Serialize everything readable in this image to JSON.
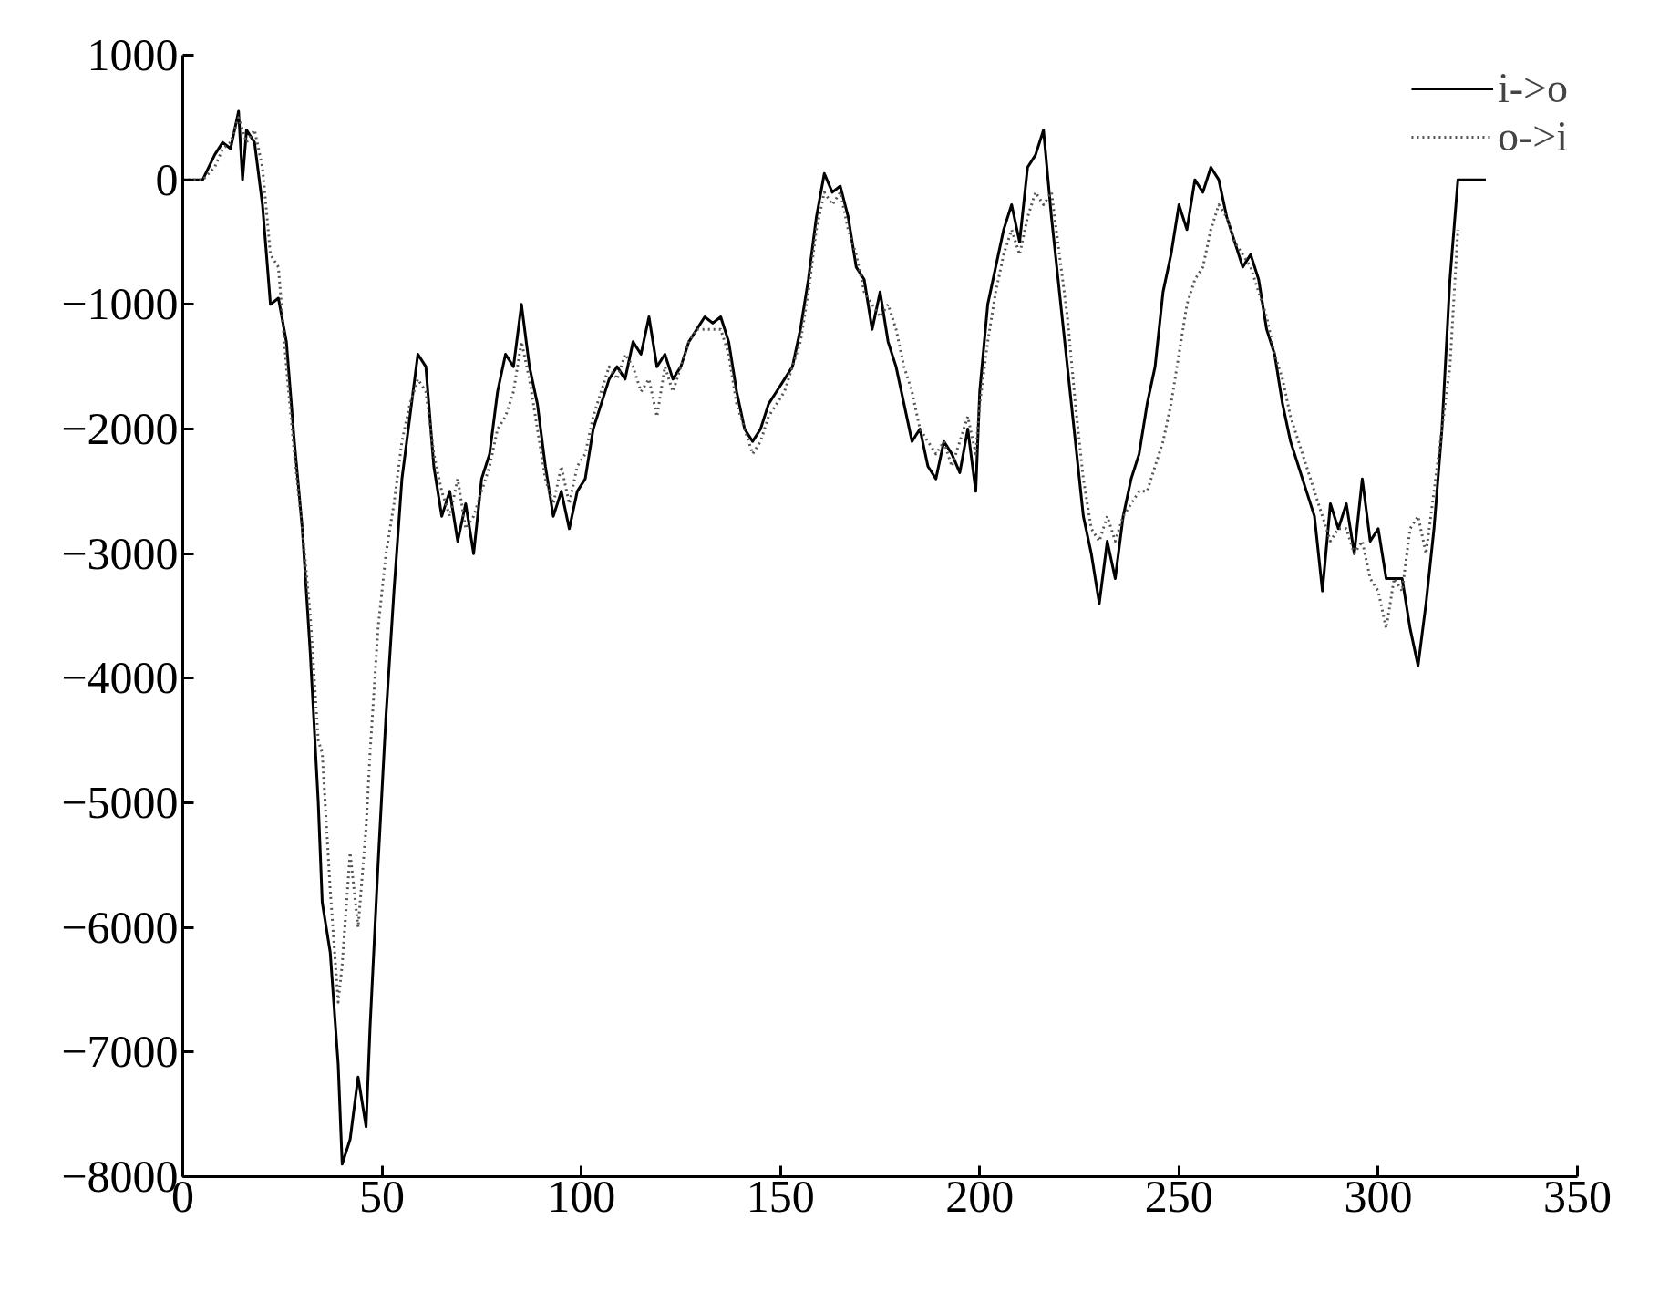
{
  "chart_data": {
    "type": "line",
    "xlim": [
      0,
      350
    ],
    "ylim": [
      -8000,
      1000
    ],
    "xticks": [
      0,
      50,
      100,
      150,
      200,
      250,
      300,
      350
    ],
    "yticks": [
      {
        "value": 1000,
        "label": "1000"
      },
      {
        "value": 0,
        "label": "0"
      },
      {
        "value": -1000,
        "label": "−1000"
      },
      {
        "value": -2000,
        "label": "−2000"
      },
      {
        "value": -3000,
        "label": "−3000"
      },
      {
        "value": -4000,
        "label": "−4000"
      },
      {
        "value": -5000,
        "label": "−5000"
      },
      {
        "value": -6000,
        "label": "−6000"
      },
      {
        "value": -7000,
        "label": "−7000"
      },
      {
        "value": -8000,
        "label": "−8000"
      }
    ],
    "grid": false,
    "legend": "top right",
    "marker": "none",
    "series": [
      {
        "name": "i->o",
        "color": "#000000",
        "line_style": "solid",
        "x": [
          0,
          5,
          8,
          10,
          12,
          14,
          15,
          16,
          18,
          20,
          22,
          24,
          26,
          28,
          30,
          32,
          34,
          35,
          37,
          39,
          40,
          42,
          44,
          46,
          47,
          49,
          51,
          53,
          55,
          57,
          59,
          61,
          63,
          65,
          67,
          69,
          71,
          73,
          75,
          77,
          79,
          81,
          83,
          85,
          87,
          89,
          91,
          93,
          95,
          97,
          99,
          101,
          103,
          105,
          107,
          109,
          111,
          113,
          115,
          117,
          119,
          121,
          123,
          125,
          127,
          129,
          131,
          133,
          135,
          137,
          139,
          141,
          143,
          145,
          147,
          149,
          151,
          153,
          155,
          157,
          159,
          161,
          163,
          165,
          167,
          169,
          171,
          173,
          175,
          177,
          179,
          181,
          183,
          185,
          187,
          189,
          191,
          193,
          195,
          197,
          199,
          200,
          202,
          204,
          206,
          208,
          210,
          212,
          214,
          216,
          218,
          220,
          222,
          224,
          226,
          228,
          230,
          232,
          234,
          236,
          238,
          240,
          242,
          244,
          246,
          248,
          250,
          252,
          254,
          256,
          258,
          260,
          262,
          264,
          266,
          268,
          270,
          272,
          274,
          276,
          278,
          280,
          282,
          284,
          286,
          288,
          290,
          292,
          294,
          296,
          298,
          300,
          302,
          304,
          306,
          308,
          310,
          312,
          314,
          316,
          318,
          319,
          320,
          323,
          327
        ],
        "values": [
          0,
          0,
          200,
          300,
          250,
          550,
          0,
          400,
          300,
          -200,
          -1000,
          -950,
          -1300,
          -2100,
          -2800,
          -3800,
          -5000,
          -5800,
          -6200,
          -7100,
          -7900,
          -7700,
          -7200,
          -7600,
          -6800,
          -5500,
          -4300,
          -3300,
          -2400,
          -1900,
          -1400,
          -1500,
          -2300,
          -2700,
          -2500,
          -2900,
          -2600,
          -3000,
          -2400,
          -2200,
          -1700,
          -1400,
          -1500,
          -1000,
          -1500,
          -1800,
          -2300,
          -2700,
          -2500,
          -2800,
          -2500,
          -2400,
          -2000,
          -1800,
          -1600,
          -1500,
          -1600,
          -1300,
          -1400,
          -1100,
          -1500,
          -1400,
          -1600,
          -1500,
          -1300,
          -1200,
          -1100,
          -1150,
          -1100,
          -1300,
          -1700,
          -2000,
          -2100,
          -2000,
          -1800,
          -1700,
          -1600,
          -1500,
          -1200,
          -800,
          -300,
          50,
          -100,
          -50,
          -300,
          -700,
          -800,
          -1200,
          -900,
          -1300,
          -1500,
          -1800,
          -2100,
          -2000,
          -2300,
          -2400,
          -2100,
          -2200,
          -2350,
          -2000,
          -2500,
          -1700,
          -1000,
          -700,
          -400,
          -200,
          -500,
          100,
          200,
          400,
          -300,
          -900,
          -1500,
          -2100,
          -2700,
          -3000,
          -3400,
          -2900,
          -3200,
          -2700,
          -2400,
          -2200,
          -1800,
          -1500,
          -900,
          -600,
          -200,
          -400,
          0,
          -100,
          100,
          0,
          -300,
          -500,
          -700,
          -600,
          -800,
          -1200,
          -1400,
          -1800,
          -2100,
          -2300,
          -2500,
          -2700,
          -3300,
          -2600,
          -2800,
          -2600,
          -3000,
          -2400,
          -2900,
          -2800,
          -3200,
          -3200,
          -3200,
          -3600,
          -3900,
          -3400,
          -2800,
          -2000,
          -800,
          -400,
          0,
          0,
          0
        ]
      },
      {
        "name": "o->i",
        "color": "#555555",
        "line_style": "dotted",
        "x": [
          0,
          5,
          8,
          10,
          12,
          14,
          16,
          18,
          20,
          22,
          24,
          26,
          28,
          30,
          32,
          34,
          35,
          37,
          39,
          40,
          42,
          44,
          46,
          47,
          49,
          51,
          53,
          55,
          57,
          59,
          61,
          63,
          65,
          67,
          69,
          71,
          73,
          75,
          77,
          79,
          81,
          83,
          85,
          87,
          89,
          91,
          93,
          95,
          97,
          99,
          101,
          103,
          105,
          107,
          109,
          111,
          113,
          115,
          117,
          119,
          121,
          123,
          125,
          127,
          129,
          131,
          133,
          135,
          137,
          139,
          141,
          143,
          145,
          147,
          149,
          151,
          153,
          155,
          157,
          159,
          161,
          163,
          165,
          167,
          169,
          171,
          173,
          175,
          177,
          179,
          181,
          183,
          185,
          187,
          189,
          191,
          193,
          195,
          197,
          199,
          200,
          202,
          204,
          206,
          208,
          210,
          212,
          214,
          216,
          218,
          220,
          222,
          224,
          226,
          228,
          230,
          232,
          234,
          236,
          238,
          240,
          242,
          244,
          246,
          248,
          250,
          252,
          254,
          256,
          258,
          260,
          262,
          264,
          266,
          268,
          270,
          272,
          274,
          276,
          278,
          280,
          282,
          284,
          286,
          288,
          290,
          292,
          294,
          296,
          298,
          300,
          302,
          304,
          306,
          308,
          310,
          312,
          314,
          316,
          318,
          320
        ],
        "values": [
          0,
          0,
          100,
          250,
          300,
          500,
          300,
          400,
          100,
          -600,
          -700,
          -1500,
          -2200,
          -2800,
          -3500,
          -4500,
          -4600,
          -5700,
          -6600,
          -6300,
          -5400,
          -6000,
          -5200,
          -4600,
          -3600,
          -3000,
          -2600,
          -2100,
          -1800,
          -1600,
          -1700,
          -2200,
          -2500,
          -2700,
          -2400,
          -2800,
          -2700,
          -2500,
          -2300,
          -2000,
          -1900,
          -1700,
          -1300,
          -1600,
          -2000,
          -2400,
          -2600,
          -2300,
          -2600,
          -2300,
          -2200,
          -1900,
          -1700,
          -1500,
          -1600,
          -1400,
          -1500,
          -1700,
          -1600,
          -1900,
          -1500,
          -1700,
          -1500,
          -1300,
          -1200,
          -1200,
          -1200,
          -1200,
          -1400,
          -1800,
          -2000,
          -2200,
          -2100,
          -1900,
          -1800,
          -1700,
          -1500,
          -1300,
          -900,
          -400,
          -100,
          -200,
          -100,
          -400,
          -600,
          -900,
          -1000,
          -1100,
          -1000,
          -1200,
          -1500,
          -1700,
          -2000,
          -2100,
          -2200,
          -2100,
          -2300,
          -2100,
          -1900,
          -2200,
          -1800,
          -1300,
          -900,
          -600,
          -400,
          -600,
          -300,
          -100,
          -200,
          -100,
          -600,
          -1100,
          -1800,
          -2400,
          -2800,
          -2900,
          -2700,
          -2900,
          -2700,
          -2600,
          -2500,
          -2500,
          -2300,
          -2100,
          -1800,
          -1400,
          -1000,
          -800,
          -700,
          -400,
          -200,
          -300,
          -500,
          -600,
          -700,
          -900,
          -1100,
          -1400,
          -1600,
          -1900,
          -2100,
          -2300,
          -2500,
          -2700,
          -2900,
          -2800,
          -2800,
          -3000,
          -2900,
          -3200,
          -3300,
          -3600,
          -3200,
          -3300,
          -2800,
          -2700,
          -3000,
          -2500,
          -2000,
          -1500,
          -400
        ]
      }
    ]
  }
}
